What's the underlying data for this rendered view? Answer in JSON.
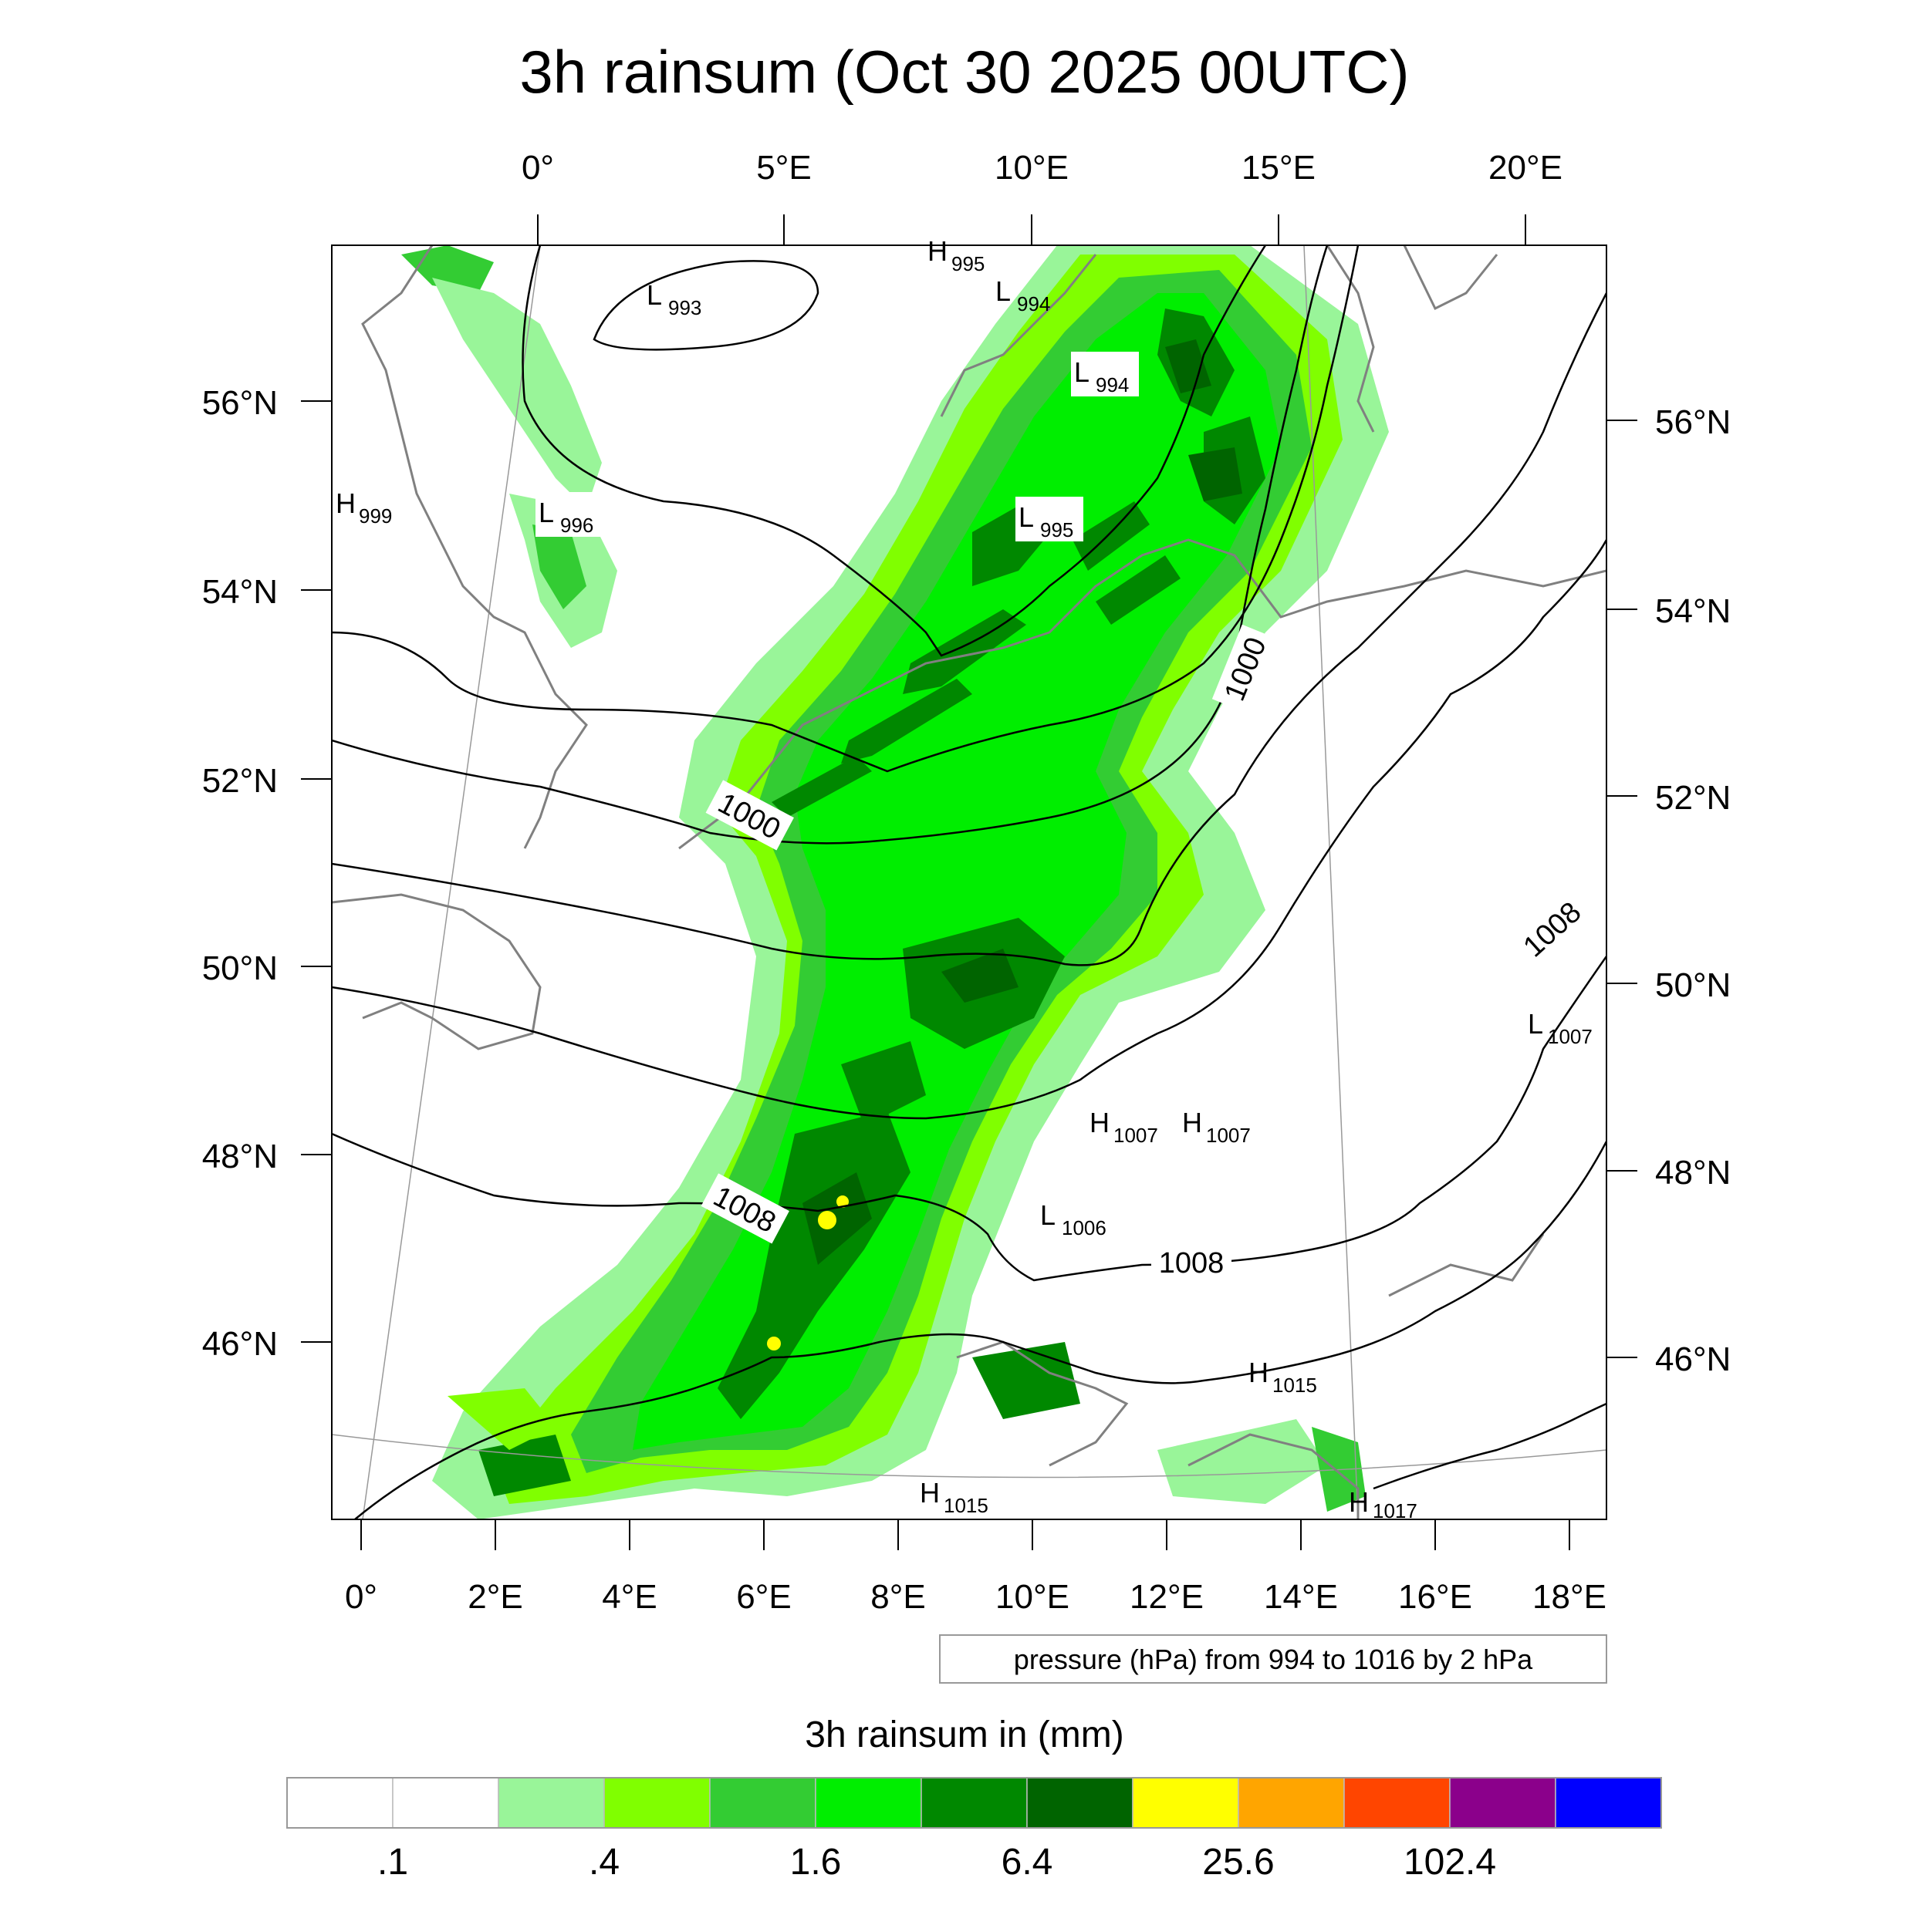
{
  "title": "3h rainsum (Oct 30 2025 00UTC)",
  "top_lon_labels": [
    "0°",
    "5°E",
    "10°E",
    "15°E",
    "20°E"
  ],
  "bottom_lon_labels": [
    "0°",
    "2°E",
    "4°E",
    "6°E",
    "8°E",
    "10°E",
    "12°E",
    "14°E",
    "16°E",
    "18°E"
  ],
  "left_lat_labels": [
    "56°N",
    "54°N",
    "52°N",
    "50°N",
    "48°N",
    "46°N"
  ],
  "right_lat_labels": [
    "56°N",
    "54°N",
    "52°N",
    "50°N",
    "48°N",
    "46°N"
  ],
  "contour_note": "pressure (hPa) from 994 to 1016 by 2 hPa",
  "colorbar": {
    "title": "3h rainsum in (mm)",
    "colors": [
      "#ffffff",
      "#ffffff",
      "#99f599",
      "#80ff00",
      "#33cc33",
      "#00ee00",
      "#008800",
      "#006400",
      "#ffff00",
      "#ffa500",
      "#ff4500",
      "#8b008b",
      "#0000ff"
    ],
    "labels": [
      ".1",
      ".4",
      "1.6",
      "6.4",
      "25.6",
      "102.4"
    ]
  },
  "pressure_centers": [
    {
      "type": "L",
      "value": "993"
    },
    {
      "type": "H",
      "value": "995"
    },
    {
      "type": "L",
      "value": "994"
    },
    {
      "type": "L",
      "value": "994"
    },
    {
      "type": "H",
      "value": "999"
    },
    {
      "type": "L",
      "value": "996"
    },
    {
      "type": "L",
      "value": "995"
    },
    {
      "type": "L",
      "value": "1007"
    },
    {
      "type": "H",
      "value": "1007"
    },
    {
      "type": "H",
      "value": "1007"
    },
    {
      "type": "L",
      "value": "1006"
    },
    {
      "type": "H",
      "value": "1015"
    },
    {
      "type": "H",
      "value": "1015"
    },
    {
      "type": "H",
      "value": "1017"
    }
  ],
  "contour_labels": [
    "1000",
    "1000",
    "1008",
    "1008",
    "1008"
  ]
}
